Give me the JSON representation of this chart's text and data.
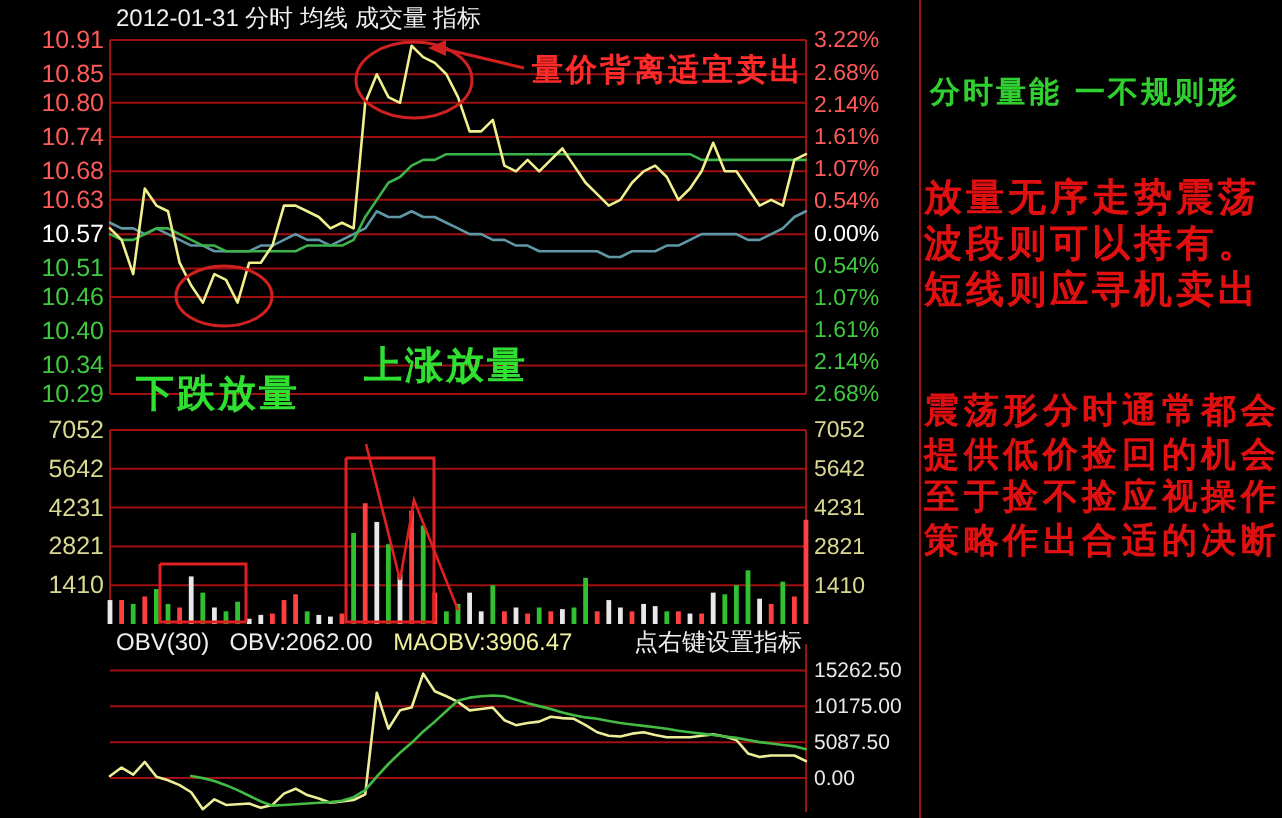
{
  "chart_data": [
    {
      "type": "line",
      "title": "2012-01-31 分时 均线 成交量 指标",
      "categories": [
        null,
        null,
        null,
        null,
        null,
        null,
        null,
        null,
        null,
        null,
        null,
        null,
        null,
        null,
        null,
        null,
        null,
        null,
        null,
        null,
        null,
        null,
        null,
        null,
        null,
        null,
        null,
        null,
        null,
        null,
        null,
        null,
        null,
        null,
        null,
        null,
        null,
        null,
        null,
        null,
        null,
        null,
        null,
        null,
        null,
        null,
        null,
        null,
        null,
        null,
        null,
        null,
        null,
        null,
        null,
        null,
        null,
        null,
        null,
        null,
        null
      ],
      "ylim": [
        10.29,
        10.91
      ],
      "yticks": [
        10.29,
        10.34,
        {
          "value": 10.4,
          "label": "10.40"
        },
        10.46,
        10.51,
        10.57,
        10.63,
        10.68,
        10.74,
        {
          "value": 10.8,
          "label": "10.80"
        },
        10.85,
        10.91
      ],
      "y2lim": [
        -2.68,
        3.22
      ],
      "y2ticks": [
        {
          "value": -2.68,
          "label": "2.68%"
        },
        {
          "value": -2.14,
          "label": "2.14%"
        },
        {
          "value": -1.61,
          "label": "1.61%"
        },
        {
          "value": -1.07,
          "label": "1.07%"
        },
        {
          "value": -0.54,
          "label": "0.54%"
        },
        {
          "value": 0,
          "label": "0.00%"
        },
        {
          "value": 0.54,
          "label": "0.54%"
        },
        {
          "value": 1.07,
          "label": "1.07%"
        },
        {
          "value": 1.61,
          "label": "1.61%"
        },
        {
          "value": 2.14,
          "label": "2.14%"
        },
        {
          "value": 2.68,
          "label": "2.68%"
        },
        {
          "value": 3.22,
          "label": "3.22%"
        }
      ],
      "grid": "y",
      "series": [
        {
          "color": "#5f97a6",
          "values": [
            10.59,
            10.58,
            10.58,
            10.57,
            10.58,
            10.57,
            10.56,
            10.55,
            10.55,
            10.54,
            10.54,
            10.54,
            10.54,
            10.55,
            10.55,
            10.56,
            10.57,
            10.56,
            10.56,
            10.55,
            10.56,
            10.57,
            10.58,
            10.61,
            10.6,
            10.6,
            10.61,
            10.6,
            10.6,
            10.59,
            10.58,
            10.57,
            10.57,
            10.56,
            10.56,
            10.55,
            10.55,
            10.54,
            10.54,
            10.54,
            10.54,
            10.54,
            10.54,
            10.53,
            10.53,
            10.54,
            10.54,
            10.54,
            10.55,
            10.55,
            10.56,
            10.57,
            10.57,
            10.57,
            10.57,
            10.56,
            10.56,
            10.57,
            10.58,
            10.6,
            10.61
          ]
        },
        {
          "color": "#3cb44b",
          "values": [
            10.57,
            10.56,
            10.56,
            10.57,
            10.58,
            10.58,
            10.57,
            10.56,
            10.55,
            10.55,
            10.54,
            10.54,
            10.54,
            10.54,
            10.54,
            10.54,
            10.54,
            10.55,
            10.55,
            10.55,
            10.55,
            10.56,
            10.6,
            10.63,
            10.66,
            10.67,
            10.69,
            10.7,
            10.7,
            10.71,
            10.71,
            10.71,
            10.71,
            10.71,
            10.71,
            10.71,
            10.71,
            10.71,
            10.71,
            10.71,
            10.71,
            10.71,
            10.71,
            10.71,
            10.71,
            10.71,
            10.71,
            10.71,
            10.71,
            10.71,
            10.71,
            10.7,
            10.7,
            10.7,
            10.7,
            10.7,
            10.7,
            10.7,
            10.7,
            10.7,
            10.7
          ]
        },
        {
          "color": "#f0f08c",
          "values": [
            10.58,
            10.56,
            10.5,
            10.65,
            10.62,
            10.61,
            10.52,
            10.48,
            10.45,
            10.5,
            10.49,
            10.45,
            10.52,
            10.52,
            10.55,
            10.62,
            10.62,
            10.61,
            10.6,
            10.58,
            10.59,
            10.58,
            10.8,
            10.85,
            10.81,
            10.8,
            10.9,
            10.88,
            10.87,
            10.85,
            10.81,
            10.75,
            10.75,
            10.77,
            10.69,
            10.68,
            10.7,
            10.68,
            10.7,
            10.72,
            10.69,
            10.66,
            10.64,
            10.62,
            10.63,
            10.66,
            10.68,
            10.69,
            10.67,
            10.63,
            10.65,
            10.68,
            10.73,
            10.68,
            10.68,
            10.65,
            10.62,
            10.63,
            10.62,
            10.7,
            10.71
          ]
        }
      ],
      "annotations": [
        "量价背离适宜卖出",
        "下跌放量",
        "上涨放量",
        "分时量能 一不规则形",
        "放量无序走势震荡波段则可以持有。短线则应寻机卖出",
        "震荡形分时通常都会提供低价捡回的机会至于捡不捡应视操作策略作出合适的决断"
      ]
    },
    {
      "type": "bar",
      "categories": [
        null,
        null,
        null,
        null,
        null,
        null,
        null,
        null,
        null,
        null,
        null,
        null,
        null,
        null,
        null,
        null,
        null,
        null,
        null,
        null,
        null,
        null,
        null,
        null,
        null,
        null,
        null,
        null,
        null,
        null,
        null,
        null,
        null,
        null,
        null,
        null,
        null,
        null,
        null,
        null,
        null,
        null,
        null,
        null,
        null,
        null,
        null,
        null,
        null,
        null,
        null,
        null,
        null,
        null,
        null,
        null,
        null,
        null,
        null,
        null,
        null
      ],
      "ylim": [
        0,
        7052
      ],
      "yticks": [
        1410,
        2821,
        4231,
        5642,
        7052
      ],
      "y2lim": [
        0,
        7052
      ],
      "y2ticks": [
        1410,
        2821,
        4231,
        5642,
        7052
      ],
      "grid": "y",
      "values": [
        870,
        870,
        730,
        1000,
        1270,
        730,
        600,
        1730,
        1140,
        600,
        460,
        810,
        190,
        330,
        380,
        870,
        1080,
        460,
        330,
        270,
        380,
        3310,
        4390,
        3710,
        2900,
        1810,
        4120,
        3580,
        1140,
        460,
        730,
        1140,
        460,
        1410,
        460,
        600,
        380,
        600,
        460,
        540,
        600,
        1680,
        460,
        870,
        600,
        460,
        730,
        650,
        460,
        460,
        380,
        380,
        1140,
        1080,
        1410,
        1950,
        920,
        730,
        1540,
        1000,
        3790
      ],
      "colors": [
        "#e8e8e8",
        "#ff4040",
        "#30c030",
        "#ff4040",
        "#30c030",
        "#30c030",
        "#ff4040",
        "#e8e8e8",
        "#30c030",
        "#e8e8e8",
        "#30c030",
        "#30c030",
        "#e8e8e8",
        "#e8e8e8",
        "#ff4040",
        "#ff4040",
        "#ff4040",
        "#30c030",
        "#e8e8e8",
        "#e8e8e8",
        "#ff4040",
        "#30c030",
        "#ff4040",
        "#e8e8e8",
        "#30c030",
        "#e8e8e8",
        "#ff4040",
        "#30c030",
        "#ff4040",
        "#30c030",
        "#30c030",
        "#e8e8e8",
        "#e8e8e8",
        "#30c030",
        "#ff4040",
        "#e8e8e8",
        "#ff4040",
        "#30c030",
        "#ff4040",
        "#e8e8e8",
        "#30c030",
        "#30c030",
        "#ff4040",
        "#e8e8e8",
        "#e8e8e8",
        "#ff4040",
        "#e8e8e8",
        "#e8e8e8",
        "#30c030",
        "#ff4040",
        "#e8e8e8",
        "#ff4040",
        "#e8e8e8",
        "#30c030",
        "#30c030",
        "#30c030",
        "#e8e8e8",
        "#ff4040",
        "#30c030",
        "#ff4040",
        "#ff4040"
      ]
    },
    {
      "type": "line",
      "title": "OBV(30)",
      "categories": [
        null,
        null,
        null,
        null,
        null,
        null,
        null,
        null,
        null,
        null,
        null,
        null,
        null,
        null,
        null,
        null,
        null,
        null,
        null,
        null,
        null,
        null,
        null,
        null,
        null,
        null,
        null,
        null,
        null,
        null,
        null,
        null,
        null,
        null,
        null,
        null,
        null,
        null,
        null,
        null,
        null,
        null,
        null,
        null,
        null,
        null,
        null,
        null,
        null,
        null,
        null,
        null,
        null,
        null,
        null,
        null,
        null,
        null,
        null,
        null,
        null
      ],
      "ylim": [
        -4800,
        19000
      ],
      "yticks": [
        {
          "value": 0,
          "label": "0.00"
        },
        {
          "value": 5087.5,
          "label": "5087.50"
        },
        {
          "value": 10175,
          "label": "10175.00"
        },
        {
          "value": 15262.5,
          "label": "15262.50"
        }
      ],
      "grid": "y",
      "series": [
        {
          "color": "#eeee99",
          "values": [
            300,
            1500,
            500,
            2300,
            200,
            -300,
            -1000,
            -2000,
            -4400,
            -3000,
            -3800,
            -3700,
            -3600,
            -4200,
            -3800,
            -2200,
            -1500,
            -2400,
            -2900,
            -3500,
            -3300,
            -3100,
            -2300,
            12100,
            7000,
            9600,
            10000,
            14800,
            12300,
            11600,
            10800,
            9600,
            9800,
            10000,
            8200,
            7500,
            7800,
            8000,
            8700,
            8500,
            8400,
            7500,
            6500,
            6000,
            5900,
            6300,
            6500,
            6100,
            5800,
            5800,
            5800,
            6000,
            6200,
            5900,
            5400,
            3500,
            3000,
            3200,
            3200,
            3200,
            2400
          ]
        },
        {
          "color": "#44bb44",
          "values": [
            null,
            null,
            null,
            null,
            null,
            null,
            null,
            300,
            0,
            -400,
            -1000,
            -1700,
            -2500,
            -3300,
            -3900,
            -3800,
            -3700,
            -3600,
            -3500,
            -3400,
            -3200,
            -2700,
            -1700,
            200,
            2000,
            3600,
            5000,
            6600,
            8000,
            9500,
            11000,
            11400,
            11600,
            11700,
            11600,
            11100,
            10600,
            10200,
            9800,
            9300,
            8900,
            8600,
            8400,
            8100,
            7800,
            7600,
            7400,
            7200,
            7000,
            6700,
            6500,
            6300,
            6100,
            5900,
            5700,
            5400,
            5100,
            4900,
            4700,
            4500,
            4100
          ]
        }
      ],
      "annotations": [
        "OBV:2062.00",
        "MAOBV:3906.47",
        "点右键设置指标"
      ]
    }
  ]
}
